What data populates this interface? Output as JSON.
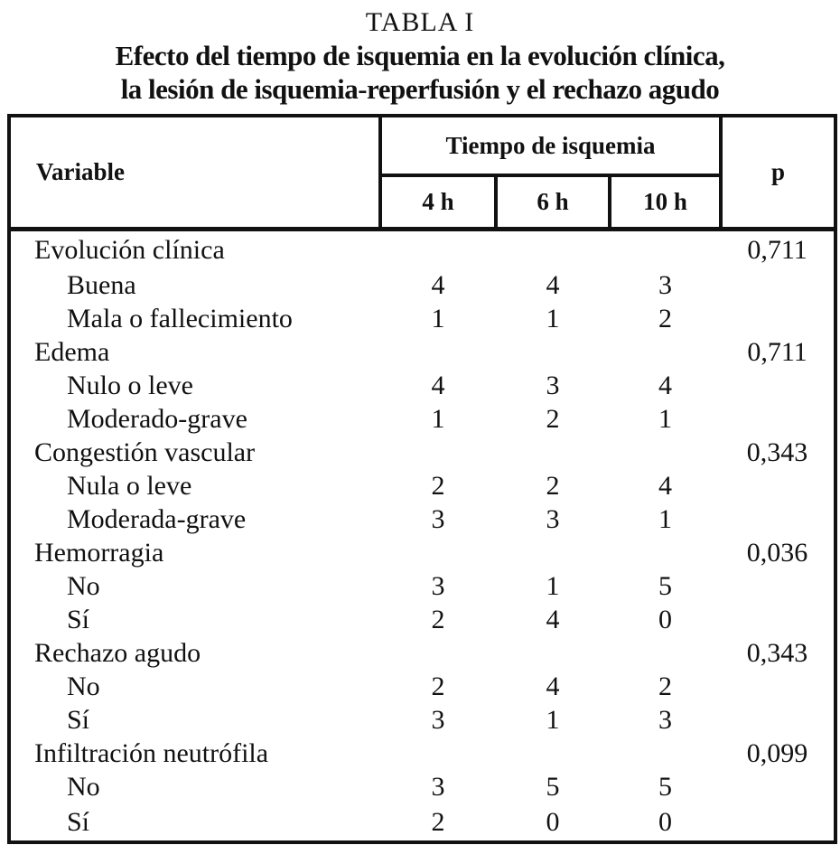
{
  "title": {
    "label": "TABLA I",
    "line1": "Efecto del tiempo de isquemia en la evolución clínica,",
    "line2": "la lesión de isquemia-reperfusión y el rechazo agudo"
  },
  "colors": {
    "text": "#111111",
    "border": "#111111",
    "background": "#ffffff"
  },
  "chart_data": {
    "type": "table",
    "title": "TABLA I — Efecto del tiempo de isquemia en la evolución clínica, la lesión de isquemia-reperfusión y el rechazo agudo",
    "columns": [
      "Variable",
      "4 h",
      "6 h",
      "10 h",
      "p"
    ],
    "column_group": {
      "label": "Tiempo de isquemia",
      "spans": [
        "4 h",
        "6 h",
        "10 h"
      ]
    },
    "rows": [
      [
        "Evolución clínica",
        "",
        "",
        "",
        "0,711"
      ],
      [
        "Buena",
        "4",
        "4",
        "3",
        ""
      ],
      [
        "Mala o fallecimiento",
        "1",
        "1",
        "2",
        ""
      ],
      [
        "Edema",
        "",
        "",
        "",
        "0,711"
      ],
      [
        "Nulo o leve",
        "4",
        "3",
        "4",
        ""
      ],
      [
        "Moderado-grave",
        "1",
        "2",
        "1",
        ""
      ],
      [
        "Congestión vascular",
        "",
        "",
        "",
        "0,343"
      ],
      [
        "Nula o leve",
        "2",
        "2",
        "4",
        ""
      ],
      [
        "Moderada-grave",
        "3",
        "3",
        "1",
        ""
      ],
      [
        "Hemorragia",
        "",
        "",
        "",
        "0,036"
      ],
      [
        "No",
        "3",
        "1",
        "5",
        ""
      ],
      [
        "Sí",
        "2",
        "4",
        "0",
        ""
      ],
      [
        "Rechazo agudo",
        "",
        "",
        "",
        "0,343"
      ],
      [
        "No",
        "2",
        "4",
        "2",
        ""
      ],
      [
        "Sí",
        "3",
        "1",
        "3",
        ""
      ],
      [
        "Infiltración neutrófila",
        "",
        "",
        "",
        "0,099"
      ],
      [
        "No",
        "3",
        "5",
        "5",
        ""
      ],
      [
        "Sí",
        "2",
        "0",
        "0",
        ""
      ]
    ]
  },
  "table": {
    "header": {
      "variable": "Variable",
      "group": "Tiempo de isquemia",
      "cols": [
        "4 h",
        "6 h",
        "10 h"
      ],
      "p": "p"
    },
    "rows": [
      {
        "label": "Evolución clínica",
        "indent": false,
        "values": [
          "",
          "",
          ""
        ],
        "p": "0,711"
      },
      {
        "label": "Buena",
        "indent": true,
        "values": [
          "4",
          "4",
          "3"
        ],
        "p": ""
      },
      {
        "label": "Mala o fallecimiento",
        "indent": true,
        "values": [
          "1",
          "1",
          "2"
        ],
        "p": ""
      },
      {
        "label": "Edema",
        "indent": false,
        "values": [
          "",
          "",
          ""
        ],
        "p": "0,711"
      },
      {
        "label": "Nulo o leve",
        "indent": true,
        "values": [
          "4",
          "3",
          "4"
        ],
        "p": ""
      },
      {
        "label": "Moderado-grave",
        "indent": true,
        "values": [
          "1",
          "2",
          "1"
        ],
        "p": ""
      },
      {
        "label": "Congestión vascular",
        "indent": false,
        "values": [
          "",
          "",
          ""
        ],
        "p": "0,343"
      },
      {
        "label": "Nula o leve",
        "indent": true,
        "values": [
          "2",
          "2",
          "4"
        ],
        "p": ""
      },
      {
        "label": "Moderada-grave",
        "indent": true,
        "values": [
          "3",
          "3",
          "1"
        ],
        "p": ""
      },
      {
        "label": "Hemorragia",
        "indent": false,
        "values": [
          "",
          "",
          ""
        ],
        "p": "0,036"
      },
      {
        "label": "No",
        "indent": true,
        "values": [
          "3",
          "1",
          "5"
        ],
        "p": ""
      },
      {
        "label": "Sí",
        "indent": true,
        "values": [
          "2",
          "4",
          "0"
        ],
        "p": ""
      },
      {
        "label": "Rechazo agudo",
        "indent": false,
        "values": [
          "",
          "",
          ""
        ],
        "p": "0,343"
      },
      {
        "label": "No",
        "indent": true,
        "values": [
          "2",
          "4",
          "2"
        ],
        "p": ""
      },
      {
        "label": "Sí",
        "indent": true,
        "values": [
          "3",
          "1",
          "3"
        ],
        "p": ""
      },
      {
        "label": "Infiltración neutrófila",
        "indent": false,
        "values": [
          "",
          "",
          ""
        ],
        "p": "0,099"
      },
      {
        "label": "No",
        "indent": true,
        "values": [
          "3",
          "5",
          "5"
        ],
        "p": ""
      },
      {
        "label": "Sí",
        "indent": true,
        "values": [
          "2",
          "0",
          "0"
        ],
        "p": ""
      }
    ]
  }
}
